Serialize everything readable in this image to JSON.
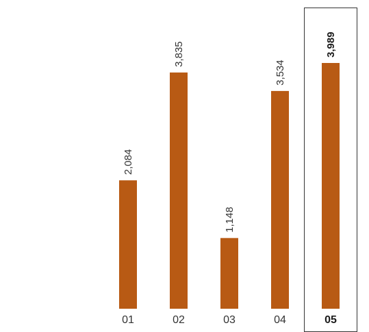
{
  "chart_data": {
    "type": "bar",
    "categories": [
      "01",
      "02",
      "03",
      "04",
      "05"
    ],
    "values": [
      2084,
      3835,
      1148,
      3534,
      3989
    ],
    "value_labels": [
      "2,084",
      "3,835",
      "1,148",
      "3,534",
      "3,989"
    ],
    "highlight_index": 4,
    "title": "",
    "xlabel": "",
    "ylabel": "",
    "ylim": [
      0,
      4000
    ],
    "grid": false,
    "legend": "none",
    "colors": {
      "bar": "#b85a14",
      "highlight_box": "#333333",
      "text": "#333333"
    }
  }
}
